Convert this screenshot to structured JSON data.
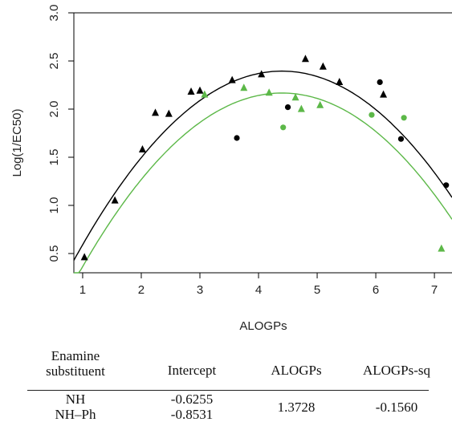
{
  "chart_data": {
    "type": "scatter",
    "xlabel": "ALOGPs",
    "ylabel": "Log(1/EC50)",
    "xlim": [
      0.85,
      7.3
    ],
    "ylim": [
      0.3,
      3.0
    ],
    "xticks": [
      "1",
      "2",
      "3",
      "4",
      "5",
      "6",
      "7"
    ],
    "yticks": [
      "0.5",
      "1.0",
      "1.5",
      "2.0",
      "2.5",
      "3.0"
    ],
    "colors": {
      "black": "#000000",
      "green": "#5cb848"
    },
    "series": [
      {
        "color": "black",
        "marker": "triangle",
        "x": [
          1.03,
          1.55,
          2.02,
          2.24,
          2.47,
          2.85,
          3.0,
          3.55,
          4.05,
          4.8,
          5.1,
          5.38,
          6.13
        ],
        "y": [
          0.46,
          1.05,
          1.58,
          1.96,
          1.95,
          2.18,
          2.19,
          2.3,
          2.36,
          2.52,
          2.44,
          2.28,
          2.15
        ]
      },
      {
        "color": "black",
        "marker": "circle",
        "x": [
          3.63,
          4.5,
          6.07,
          6.43,
          7.2
        ],
        "y": [
          1.7,
          2.02,
          2.28,
          1.69,
          1.21
        ]
      },
      {
        "color": "green",
        "marker": "triangle",
        "x": [
          3.08,
          3.75,
          4.18,
          4.63,
          4.73,
          5.05,
          7.12
        ],
        "y": [
          2.15,
          2.22,
          2.17,
          2.12,
          2.0,
          2.04,
          0.55
        ]
      },
      {
        "color": "green",
        "marker": "circle",
        "x": [
          4.42,
          5.93,
          6.48
        ],
        "y": [
          1.81,
          1.94,
          1.91
        ]
      }
    ],
    "curves": [
      {
        "color": "black",
        "function": "quadratic",
        "intercept": -0.6255,
        "linear": 1.3728,
        "quadratic": -0.156
      },
      {
        "color": "green",
        "function": "quadratic",
        "intercept": -0.8531,
        "linear": 1.3728,
        "quadratic": -0.156
      }
    ]
  },
  "table": {
    "headers": {
      "substituent_line1": "Enamine",
      "substituent_line2": "substituent",
      "intercept": "Intercept",
      "alogps": "ALOGPs",
      "alogps_sq": "ALOGPs-sq"
    },
    "rows": {
      "substituent_1": "NH",
      "substituent_2": "NH–Ph",
      "intercept_1": "-0.6255",
      "intercept_2": "-0.8531",
      "alogps": "1.3728",
      "alogps_sq": "-0.1560"
    }
  }
}
